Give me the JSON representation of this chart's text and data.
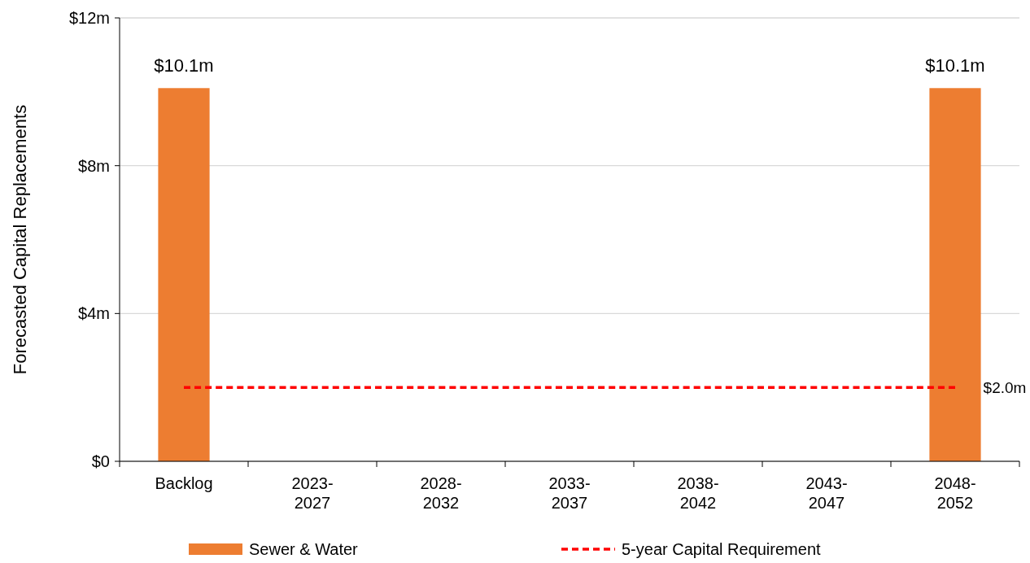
{
  "chart_data": {
    "type": "bar",
    "ylabel": "Forecasted Capital Replacements",
    "categories": [
      "Backlog",
      "2023-2027",
      "2028-2032",
      "2033-2037",
      "2038-2042",
      "2043-2047",
      "2048-2052"
    ],
    "series": [
      {
        "name": "Sewer & Water",
        "color": "#ed7d31",
        "values": [
          10.1,
          0,
          0,
          0,
          0,
          0,
          10.1
        ],
        "value_labels": [
          "$10.1m",
          null,
          null,
          null,
          null,
          null,
          "$10.1m"
        ]
      },
      {
        "name": "5-year Capital Requirement",
        "type": "line",
        "color": "#ff0000",
        "line_style": "dashed",
        "marker": "none",
        "values": [
          2.0,
          2.0,
          2.0,
          2.0,
          2.0,
          2.0,
          2.0
        ],
        "value_labels": [
          null,
          null,
          null,
          null,
          null,
          null,
          "$2.0m"
        ]
      }
    ],
    "ylim": [
      0,
      12
    ],
    "yticks": [
      {
        "value": 0,
        "label": "$0"
      },
      {
        "value": 4,
        "label": "$4m"
      },
      {
        "value": 8,
        "label": "$8m"
      },
      {
        "value": 12,
        "label": "$12m"
      }
    ],
    "grid": "y",
    "legend": "bottom"
  }
}
